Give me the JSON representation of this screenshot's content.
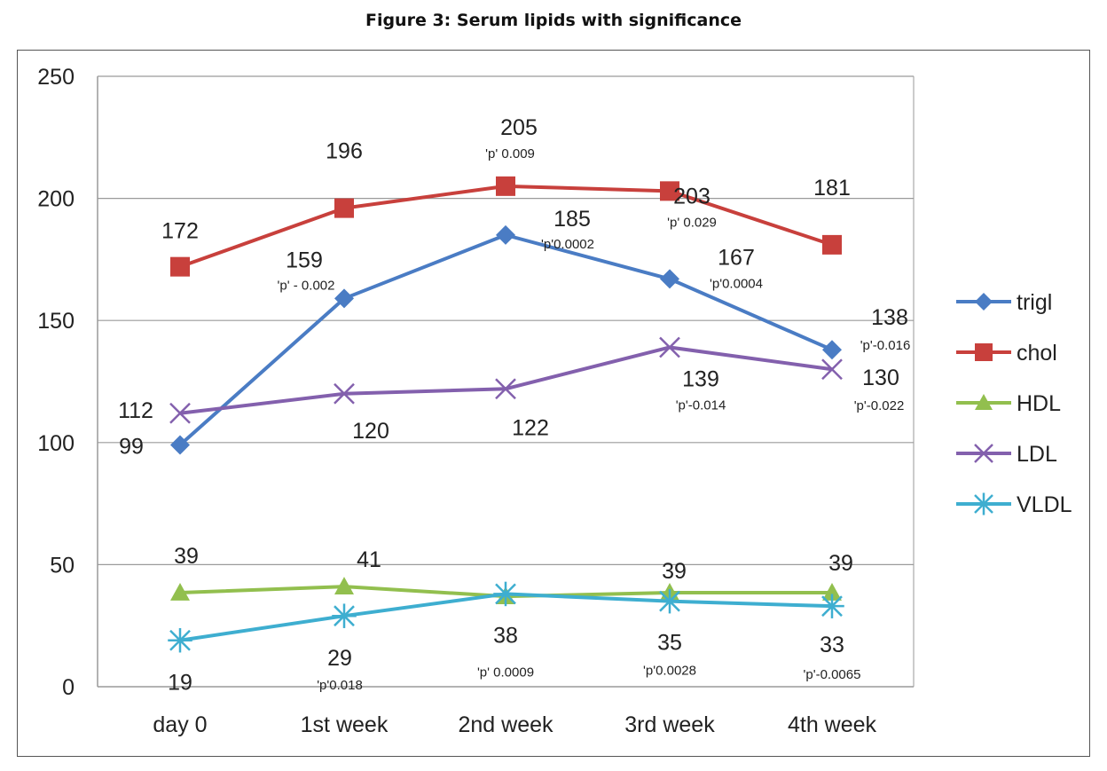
{
  "figure": {
    "title": "Figure 3: Serum lipids with significance"
  },
  "chart_data": {
    "type": "line",
    "categories": [
      "day 0",
      "1st week",
      "2nd week",
      "3rd week",
      "4th week"
    ],
    "ylim": [
      0,
      250
    ],
    "yticks": [
      0,
      50,
      100,
      150,
      200,
      250
    ],
    "grid": true,
    "legend": "right",
    "xlabel": "",
    "ylabel": "",
    "series": [
      {
        "name": "trigl",
        "color": "#4a7cc4",
        "marker": "diamond",
        "values": [
          99,
          159,
          185,
          167,
          138
        ],
        "labels": [
          "99",
          "159",
          "185",
          "167",
          "138"
        ],
        "pvalues": [
          "",
          "'p' - 0.002",
          "'p'0.0002",
          "'p'0.0004",
          "'p'-0.016"
        ]
      },
      {
        "name": "chol",
        "color": "#c8403c",
        "marker": "square",
        "values": [
          172,
          196,
          205,
          203,
          181
        ],
        "labels": [
          "172",
          "196",
          "205",
          "203",
          "181"
        ],
        "pvalues": [
          "",
          "",
          "'p' 0.009",
          "'p'  0.029",
          ""
        ]
      },
      {
        "name": "HDL",
        "color": "#92bf4e",
        "marker": "triangle",
        "values": [
          38.5,
          41,
          37,
          38.5,
          38.5
        ],
        "labels": [
          "39",
          "41",
          "",
          "39",
          "39"
        ],
        "pvalues": [
          "",
          "",
          "",
          "",
          ""
        ]
      },
      {
        "name": "LDL",
        "color": "#8360ad",
        "marker": "x",
        "values": [
          112,
          120,
          122,
          139,
          130
        ],
        "labels": [
          "112",
          "120",
          "122",
          "139",
          "130"
        ],
        "pvalues": [
          "",
          "",
          "",
          "'p'-0.014",
          "'p'-0.022"
        ]
      },
      {
        "name": "VLDL",
        "color": "#3eaed0",
        "marker": "star",
        "values": [
          19,
          29,
          38,
          35,
          33
        ],
        "labels": [
          "19",
          "29",
          "38",
          "35",
          "33"
        ],
        "pvalues": [
          "",
          "'p'0.018",
          "'p' 0.0009",
          "'p'0.0028",
          "'p'-0.0065"
        ]
      }
    ]
  }
}
